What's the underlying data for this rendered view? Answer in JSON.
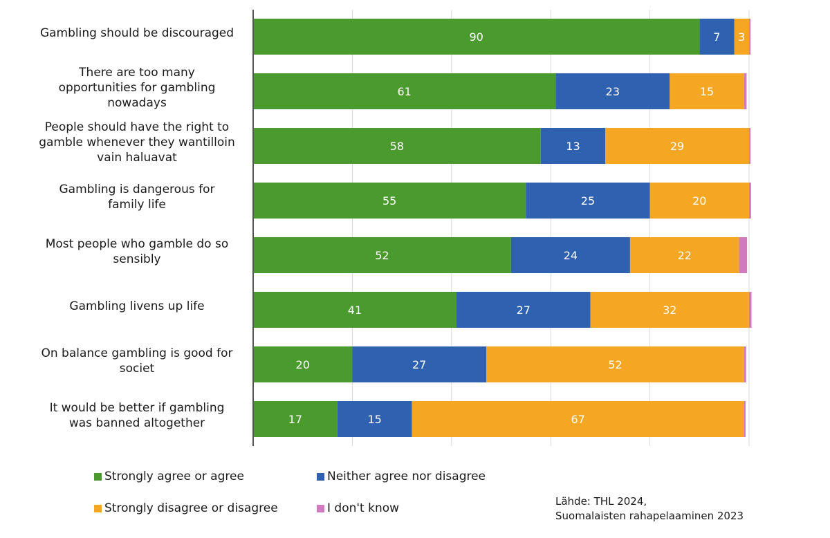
{
  "chart_data": {
    "type": "bar",
    "orientation": "horizontal",
    "stacked": true,
    "xlim": [
      0,
      100
    ],
    "grid": true,
    "categories": [
      "Gambling should be discouraged",
      "There are too many opportunities for gambling nowadays",
      "People should have the right to gamble whenever they wantilloin vain haluavat",
      "Gambling is dangerous for family life",
      "Most people who gamble do so sensibly",
      "Gambling livens up life",
      "On balance gambling is good for societ",
      "It would be better if gambling was banned altogether"
    ],
    "category_lines": [
      [
        "Gambling should be discouraged"
      ],
      [
        "There are too many",
        "opportunities for gambling",
        "nowadays"
      ],
      [
        "People should have the right to",
        "gamble whenever they wantilloin",
        "vain haluavat"
      ],
      [
        "Gambling is dangerous for",
        "family life"
      ],
      [
        "Most people who gamble do so",
        "sensibly"
      ],
      [
        "Gambling livens up life"
      ],
      [
        "On balance gambling is good for",
        "societ"
      ],
      [
        "It would be better if gambling",
        "was banned altogether"
      ]
    ],
    "series": [
      {
        "name": "Strongly agree or agree",
        "color": "#4a9a2e",
        "values": [
          90,
          61,
          58,
          55,
          52,
          41,
          20,
          17
        ]
      },
      {
        "name": "Neither agree nor disagree",
        "color": "#2e62b0",
        "values": [
          7,
          23,
          13,
          25,
          24,
          27,
          27,
          15
        ]
      },
      {
        "name": "Strongly disagree or disagree",
        "color": "#f5a623",
        "values": [
          3,
          15,
          29,
          20,
          22,
          32,
          52,
          67
        ]
      },
      {
        "name": "I don't know",
        "color": "#d07ac0",
        "values": [
          0.3,
          0.5,
          0.3,
          0.4,
          1.6,
          0.5,
          0.4,
          0.3
        ]
      }
    ],
    "legend_position": "bottom"
  },
  "legend": [
    {
      "label": "Strongly agree or agree",
      "color": "#4a9a2e"
    },
    {
      "label": "Neither agree nor disagree",
      "color": "#2e62b0"
    },
    {
      "label": "Strongly disagree or disagree",
      "color": "#f5a623"
    },
    {
      "label": "I don't know",
      "color": "#d07ac0"
    }
  ],
  "source": {
    "line1": "Lähde: THL 2024,",
    "line2": "Suomalaisten rahapelaaminen 2023"
  }
}
